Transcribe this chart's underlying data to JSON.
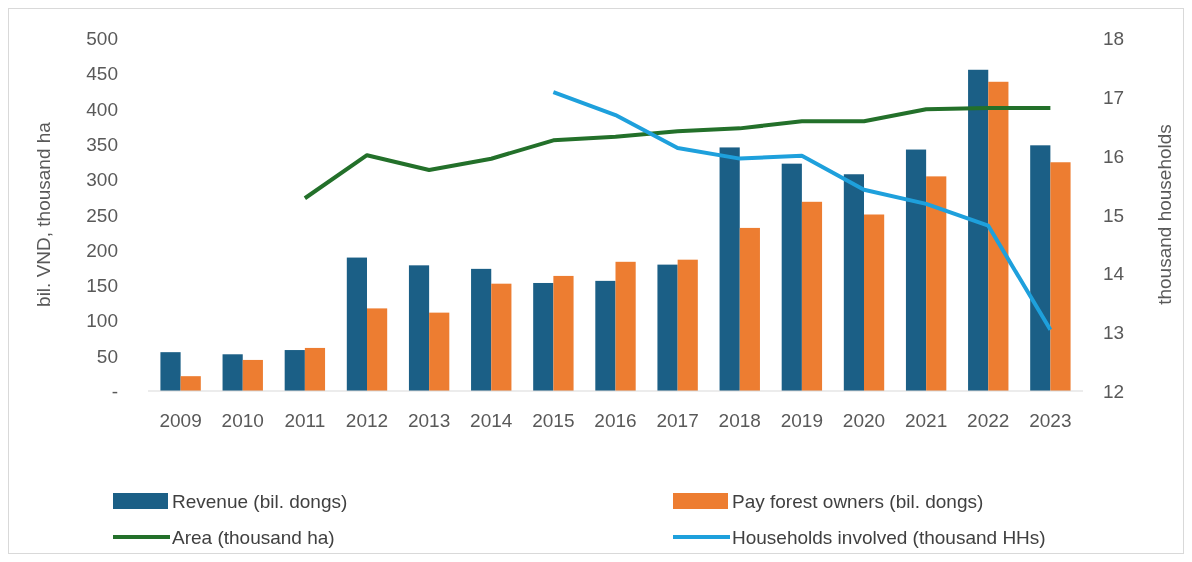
{
  "chart_data": {
    "type": "bar",
    "ylabel": "bil. VND, thousand ha",
    "y2label": "thousand households",
    "categories": [
      "2009",
      "2010",
      "2011",
      "2012",
      "2013",
      "2014",
      "2015",
      "2016",
      "2017",
      "2018",
      "2019",
      "2020",
      "2021",
      "2022",
      "2023"
    ],
    "series": [
      {
        "name": "Revenue (bil. dongs)",
        "color": "#1b5f86",
        "values": [
          55,
          52,
          58,
          189,
          178,
          173,
          153,
          156,
          179,
          345,
          322,
          307,
          342,
          455,
          348
        ]
      },
      {
        "name": "Pay forest owners (bil. dongs)",
        "color": "#ed7d31",
        "values": [
          21,
          44,
          61,
          117,
          111,
          152,
          163,
          183,
          186,
          231,
          268,
          250,
          304,
          438,
          324
        ]
      },
      {
        "name": "Area (thousand ha)",
        "type": "line",
        "color": "#23702a",
        "values": [
          null,
          null,
          273,
          334,
          313,
          329,
          355,
          360,
          368,
          372,
          382,
          382,
          399,
          401,
          401
        ]
      },
      {
        "name": "Households involved (thousand HHs)",
        "type": "line",
        "axis": "y2",
        "color": "#1ea0dc",
        "values": [
          null,
          null,
          null,
          null,
          null,
          null,
          17.08,
          16.69,
          16.13,
          15.95,
          16.0,
          15.42,
          15.18,
          14.81,
          13.04
        ]
      }
    ],
    "ylim": [
      0,
      500
    ],
    "yticks": [
      {
        "value": 0,
        "label": "-"
      },
      50,
      100,
      150,
      200,
      250,
      300,
      350,
      400,
      450,
      500
    ],
    "y2lim": [
      12,
      18
    ],
    "y2ticks": [
      12,
      13,
      14,
      15,
      16,
      17,
      18
    ],
    "grid": false,
    "legend": "bottom",
    "marker": "none"
  }
}
